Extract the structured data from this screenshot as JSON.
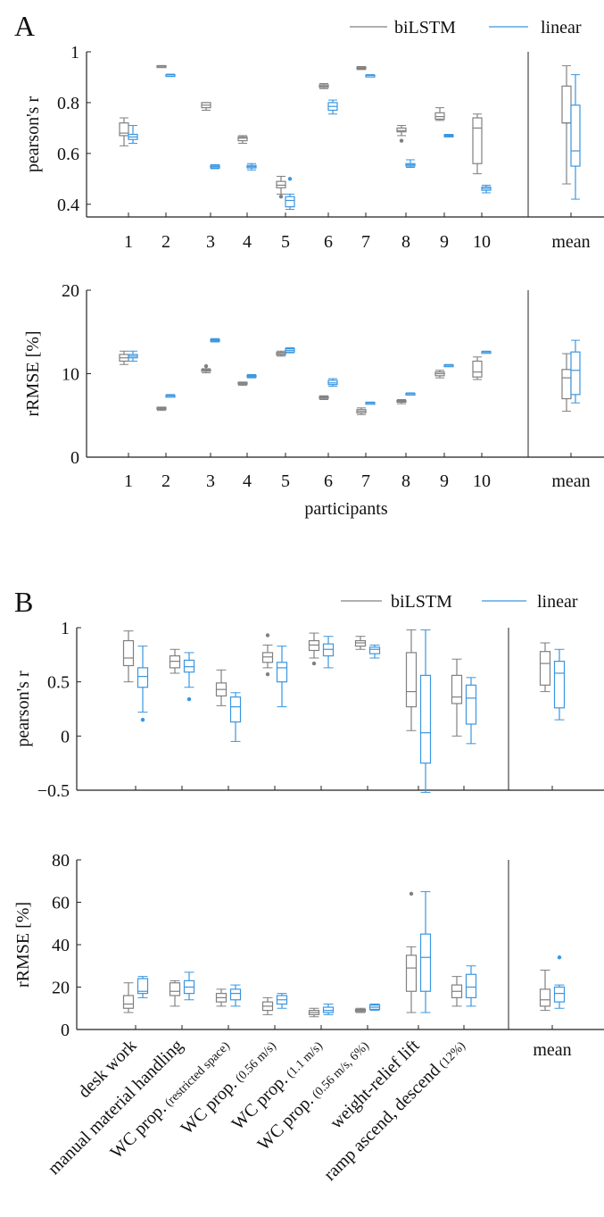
{
  "colors": {
    "biLSTM": "#808080",
    "linear": "#3a96e0",
    "axis": "#222222"
  },
  "legend": {
    "biLSTM": "biLSTM",
    "linear": "linear"
  },
  "chart_data": [
    {
      "id": "A_r",
      "panel_label": "A",
      "type": "box",
      "ylabel": "pearson's r",
      "xlabel": "",
      "ylim": [
        0.35,
        1.0
      ],
      "yticks": [
        "0.4",
        "0.6",
        "0.8",
        "1"
      ],
      "categories": [
        "1",
        "2",
        "3",
        "4",
        "5",
        "6",
        "7",
        "8",
        "9",
        "10"
      ],
      "summary_label": "mean",
      "legend": "top-right",
      "series": [
        {
          "name": "biLSTM",
          "boxes": [
            {
              "min": 0.63,
              "q1": 0.67,
              "median": 0.68,
              "q3": 0.72,
              "max": 0.74,
              "outliers": []
            },
            {
              "min": 0.94,
              "q1": 0.941,
              "median": 0.943,
              "q3": 0.945,
              "max": 0.946,
              "outliers": []
            },
            {
              "min": 0.77,
              "q1": 0.78,
              "median": 0.79,
              "q3": 0.8,
              "max": 0.8,
              "outliers": []
            },
            {
              "min": 0.64,
              "q1": 0.65,
              "median": 0.66,
              "q3": 0.665,
              "max": 0.67,
              "outliers": []
            },
            {
              "min": 0.44,
              "q1": 0.465,
              "median": 0.475,
              "q3": 0.49,
              "max": 0.51,
              "outliers": [
                0.43
              ]
            },
            {
              "min": 0.855,
              "q1": 0.86,
              "median": 0.865,
              "q3": 0.87,
              "max": 0.875,
              "outliers": []
            },
            {
              "min": 0.93,
              "q1": 0.933,
              "median": 0.936,
              "q3": 0.94,
              "max": 0.942,
              "outliers": []
            },
            {
              "min": 0.67,
              "q1": 0.685,
              "median": 0.69,
              "q3": 0.7,
              "max": 0.71,
              "outliers": [
                0.65
              ]
            },
            {
              "min": 0.73,
              "q1": 0.735,
              "median": 0.745,
              "q3": 0.76,
              "max": 0.78,
              "outliers": []
            },
            {
              "min": 0.52,
              "q1": 0.56,
              "median": 0.7,
              "q3": 0.74,
              "max": 0.755,
              "outliers": []
            }
          ],
          "summary": {
            "min": 0.48,
            "q1": 0.72,
            "median": 0.72,
            "q3": 0.865,
            "max": 0.945,
            "outliers": []
          }
        },
        {
          "name": "linear",
          "boxes": [
            {
              "min": 0.64,
              "q1": 0.655,
              "median": 0.665,
              "q3": 0.675,
              "max": 0.71,
              "outliers": []
            },
            {
              "min": 0.907,
              "q1": 0.908,
              "median": 0.909,
              "q3": 0.91,
              "max": 0.912,
              "outliers": []
            },
            {
              "min": 0.54,
              "q1": 0.543,
              "median": 0.548,
              "q3": 0.553,
              "max": 0.556,
              "outliers": []
            },
            {
              "min": 0.535,
              "q1": 0.543,
              "median": 0.548,
              "q3": 0.553,
              "max": 0.56,
              "outliers": []
            },
            {
              "min": 0.38,
              "q1": 0.39,
              "median": 0.415,
              "q3": 0.43,
              "max": 0.44,
              "outliers": [
                0.5
              ]
            },
            {
              "min": 0.755,
              "q1": 0.77,
              "median": 0.785,
              "q3": 0.8,
              "max": 0.81,
              "outliers": []
            },
            {
              "min": 0.904,
              "q1": 0.906,
              "median": 0.907,
              "q3": 0.908,
              "max": 0.91,
              "outliers": []
            },
            {
              "min": 0.545,
              "q1": 0.55,
              "median": 0.555,
              "q3": 0.56,
              "max": 0.575,
              "outliers": []
            },
            {
              "min": 0.665,
              "q1": 0.667,
              "median": 0.67,
              "q3": 0.673,
              "max": 0.675,
              "outliers": []
            },
            {
              "min": 0.445,
              "q1": 0.455,
              "median": 0.462,
              "q3": 0.468,
              "max": 0.475,
              "outliers": []
            }
          ],
          "summary": {
            "min": 0.42,
            "q1": 0.55,
            "median": 0.61,
            "q3": 0.79,
            "max": 0.91,
            "outliers": []
          }
        }
      ]
    },
    {
      "id": "A_rmse",
      "panel_label": "",
      "type": "box",
      "ylabel": "rRMSE [%]",
      "xlabel": "participants",
      "ylim": [
        0,
        20
      ],
      "yticks": [
        "0",
        "10",
        "20"
      ],
      "categories": [
        "1",
        "2",
        "3",
        "4",
        "5",
        "6",
        "7",
        "8",
        "9",
        "10"
      ],
      "summary_label": "mean",
      "series": [
        {
          "name": "biLSTM",
          "boxes": [
            {
              "min": 11.1,
              "q1": 11.5,
              "median": 11.9,
              "q3": 12.3,
              "max": 12.7,
              "outliers": []
            },
            {
              "min": 5.6,
              "q1": 5.75,
              "median": 5.85,
              "q3": 5.95,
              "max": 6.0,
              "outliers": []
            },
            {
              "min": 10.1,
              "q1": 10.3,
              "median": 10.4,
              "q3": 10.5,
              "max": 10.6,
              "outliers": [
                10.9
              ]
            },
            {
              "min": 8.6,
              "q1": 8.75,
              "median": 8.85,
              "q3": 8.95,
              "max": 9.0,
              "outliers": []
            },
            {
              "min": 12.1,
              "q1": 12.25,
              "median": 12.4,
              "q3": 12.55,
              "max": 12.7,
              "outliers": []
            },
            {
              "min": 6.9,
              "q1": 7.05,
              "median": 7.15,
              "q3": 7.25,
              "max": 7.35,
              "outliers": []
            },
            {
              "min": 5.1,
              "q1": 5.3,
              "median": 5.5,
              "q3": 5.7,
              "max": 5.9,
              "outliers": []
            },
            {
              "min": 6.4,
              "q1": 6.6,
              "median": 6.7,
              "q3": 6.8,
              "max": 6.9,
              "outliers": []
            },
            {
              "min": 9.5,
              "q1": 9.75,
              "median": 10.0,
              "q3": 10.2,
              "max": 10.4,
              "outliers": []
            },
            {
              "min": 9.3,
              "q1": 9.6,
              "median": 10.2,
              "q3": 11.5,
              "max": 12.0,
              "outliers": []
            }
          ],
          "summary": {
            "min": 5.5,
            "q1": 7.0,
            "median": 9.5,
            "q3": 10.5,
            "max": 12.4,
            "outliers": []
          }
        },
        {
          "name": "linear",
          "boxes": [
            {
              "min": 11.5,
              "q1": 11.9,
              "median": 12.1,
              "q3": 12.3,
              "max": 12.7,
              "outliers": []
            },
            {
              "min": 7.2,
              "q1": 7.3,
              "median": 7.35,
              "q3": 7.4,
              "max": 7.5,
              "outliers": []
            },
            {
              "min": 13.8,
              "q1": 13.9,
              "median": 14.0,
              "q3": 14.1,
              "max": 14.2,
              "outliers": []
            },
            {
              "min": 9.5,
              "q1": 9.6,
              "median": 9.7,
              "q3": 9.8,
              "max": 9.9,
              "outliers": []
            },
            {
              "min": 12.5,
              "q1": 12.6,
              "median": 12.8,
              "q3": 13.0,
              "max": 13.1,
              "outliers": []
            },
            {
              "min": 8.5,
              "q1": 8.7,
              "median": 8.9,
              "q3": 9.2,
              "max": 9.4,
              "outliers": []
            },
            {
              "min": 6.4,
              "q1": 6.45,
              "median": 6.5,
              "q3": 6.55,
              "max": 6.6,
              "outliers": []
            },
            {
              "min": 7.5,
              "q1": 7.55,
              "median": 7.6,
              "q3": 7.65,
              "max": 7.7,
              "outliers": []
            },
            {
              "min": 10.9,
              "q1": 10.95,
              "median": 11.0,
              "q3": 11.05,
              "max": 11.1,
              "outliers": []
            },
            {
              "min": 12.5,
              "q1": 12.55,
              "median": 12.6,
              "q3": 12.65,
              "max": 12.7,
              "outliers": []
            }
          ],
          "summary": {
            "min": 6.5,
            "q1": 7.5,
            "median": 10.4,
            "q3": 12.6,
            "max": 14.0,
            "outliers": []
          }
        }
      ]
    },
    {
      "id": "B_r",
      "panel_label": "B",
      "type": "box",
      "ylabel": "pearson's r",
      "xlabel": "",
      "ylim": [
        -0.5,
        1.0
      ],
      "yticks": [
        "−0.5",
        "0",
        "0.5",
        "1"
      ],
      "categories": [
        "desk work",
        "manual material handling",
        "WC prop.",
        "WC prop.",
        "WC prop.",
        "WC prop.",
        "weight-relief lift",
        "ramp ascend, descend"
      ],
      "summary_label": "mean",
      "legend": "top-right",
      "series": [
        {
          "name": "biLSTM",
          "boxes": [
            {
              "min": 0.5,
              "q1": 0.65,
              "median": 0.72,
              "q3": 0.88,
              "max": 0.97,
              "outliers": []
            },
            {
              "min": 0.58,
              "q1": 0.63,
              "median": 0.69,
              "q3": 0.74,
              "max": 0.8,
              "outliers": []
            },
            {
              "min": 0.28,
              "q1": 0.37,
              "median": 0.43,
              "q3": 0.49,
              "max": 0.61,
              "outliers": []
            },
            {
              "min": 0.63,
              "q1": 0.68,
              "median": 0.73,
              "q3": 0.77,
              "max": 0.84,
              "outliers": [
                0.93,
                0.57
              ]
            },
            {
              "min": 0.72,
              "q1": 0.79,
              "median": 0.84,
              "q3": 0.88,
              "max": 0.95,
              "outliers": [
                0.67
              ]
            },
            {
              "min": 0.8,
              "q1": 0.83,
              "median": 0.86,
              "q3": 0.88,
              "max": 0.92,
              "outliers": []
            },
            {
              "min": 0.05,
              "q1": 0.27,
              "median": 0.41,
              "q3": 0.77,
              "max": 0.98,
              "outliers": []
            },
            {
              "min": 0.0,
              "q1": 0.3,
              "median": 0.36,
              "q3": 0.56,
              "max": 0.71,
              "outliers": []
            }
          ],
          "summary": {
            "min": 0.41,
            "q1": 0.47,
            "median": 0.67,
            "q3": 0.78,
            "max": 0.86,
            "outliers": []
          }
        },
        {
          "name": "linear",
          "boxes": [
            {
              "min": 0.22,
              "q1": 0.45,
              "median": 0.55,
              "q3": 0.63,
              "max": 0.83,
              "outliers": [
                0.15
              ]
            },
            {
              "min": 0.45,
              "q1": 0.59,
              "median": 0.64,
              "q3": 0.7,
              "max": 0.77,
              "outliers": [
                0.34
              ]
            },
            {
              "min": -0.05,
              "q1": 0.13,
              "median": 0.27,
              "q3": 0.36,
              "max": 0.4,
              "outliers": []
            },
            {
              "min": 0.27,
              "q1": 0.5,
              "median": 0.63,
              "q3": 0.68,
              "max": 0.83,
              "outliers": []
            },
            {
              "min": 0.63,
              "q1": 0.74,
              "median": 0.8,
              "q3": 0.85,
              "max": 0.92,
              "outliers": []
            },
            {
              "min": 0.72,
              "q1": 0.76,
              "median": 0.8,
              "q3": 0.82,
              "max": 0.84,
              "outliers": []
            },
            {
              "min": -0.52,
              "q1": -0.25,
              "median": 0.03,
              "q3": 0.56,
              "max": 0.98,
              "outliers": []
            },
            {
              "min": -0.07,
              "q1": 0.11,
              "median": 0.35,
              "q3": 0.47,
              "max": 0.54,
              "outliers": []
            }
          ],
          "summary": {
            "min": 0.15,
            "q1": 0.26,
            "median": 0.58,
            "q3": 0.69,
            "max": 0.8,
            "outliers": []
          }
        }
      ]
    },
    {
      "id": "B_rmse",
      "panel_label": "",
      "type": "box",
      "ylabel": "rRMSE [%]",
      "xlabel": "",
      "ylim": [
        0,
        80
      ],
      "yticks": [
        "0",
        "20",
        "40",
        "60",
        "80"
      ],
      "categories": [
        "desk work",
        "manual material handling",
        "WC prop.",
        "WC prop.",
        "WC prop.",
        "WC prop.",
        "weight-relief lift",
        "ramp ascend, descend"
      ],
      "category_notes": [
        "",
        "",
        "(restricted space)",
        "(0.56 m/s)",
        "(1.1 m/s)",
        "(0.56 m/s, 6%)",
        "",
        "(12%)"
      ],
      "summary_label": "mean",
      "series": [
        {
          "name": "biLSTM",
          "boxes": [
            {
              "min": 8,
              "q1": 10,
              "median": 12,
              "q3": 16,
              "max": 22,
              "outliers": []
            },
            {
              "min": 11,
              "q1": 16,
              "median": 18,
              "q3": 22,
              "max": 23,
              "outliers": []
            },
            {
              "min": 11,
              "q1": 13,
              "median": 15,
              "q3": 17,
              "max": 19,
              "outliers": []
            },
            {
              "min": 7,
              "q1": 9,
              "median": 11,
              "q3": 13,
              "max": 15,
              "outliers": []
            },
            {
              "min": 6,
              "q1": 7,
              "median": 8,
              "q3": 9,
              "max": 10,
              "outliers": []
            },
            {
              "min": 8,
              "q1": 8.5,
              "median": 9,
              "q3": 9.5,
              "max": 10,
              "outliers": []
            },
            {
              "min": 8,
              "q1": 18,
              "median": 29,
              "q3": 35,
              "max": 39,
              "outliers": [
                64
              ]
            },
            {
              "min": 11,
              "q1": 15,
              "median": 18,
              "q3": 21,
              "max": 25,
              "outliers": []
            }
          ],
          "summary": {
            "min": 9,
            "q1": 11,
            "median": 14,
            "q3": 19,
            "max": 28,
            "outliers": []
          }
        },
        {
          "name": "linear",
          "boxes": [
            {
              "min": 15,
              "q1": 17,
              "median": 18,
              "q3": 24,
              "max": 25,
              "outliers": []
            },
            {
              "min": 14,
              "q1": 17,
              "median": 20,
              "q3": 23,
              "max": 27,
              "outliers": []
            },
            {
              "min": 11,
              "q1": 14,
              "median": 17,
              "q3": 19,
              "max": 21,
              "outliers": []
            },
            {
              "min": 10,
              "q1": 12,
              "median": 14,
              "q3": 16,
              "max": 17,
              "outliers": []
            },
            {
              "min": 7,
              "q1": 8,
              "median": 9,
              "q3": 10.5,
              "max": 12,
              "outliers": []
            },
            {
              "min": 9,
              "q1": 9.5,
              "median": 10.5,
              "q3": 11.5,
              "max": 12,
              "outliers": []
            },
            {
              "min": 8,
              "q1": 18,
              "median": 34,
              "q3": 45,
              "max": 65,
              "outliers": []
            },
            {
              "min": 11,
              "q1": 15,
              "median": 20,
              "q3": 26,
              "max": 30,
              "outliers": []
            }
          ],
          "summary": {
            "min": 10,
            "q1": 13,
            "median": 17,
            "q3": 20,
            "max": 21,
            "outliers": [
              34
            ]
          }
        }
      ]
    }
  ]
}
